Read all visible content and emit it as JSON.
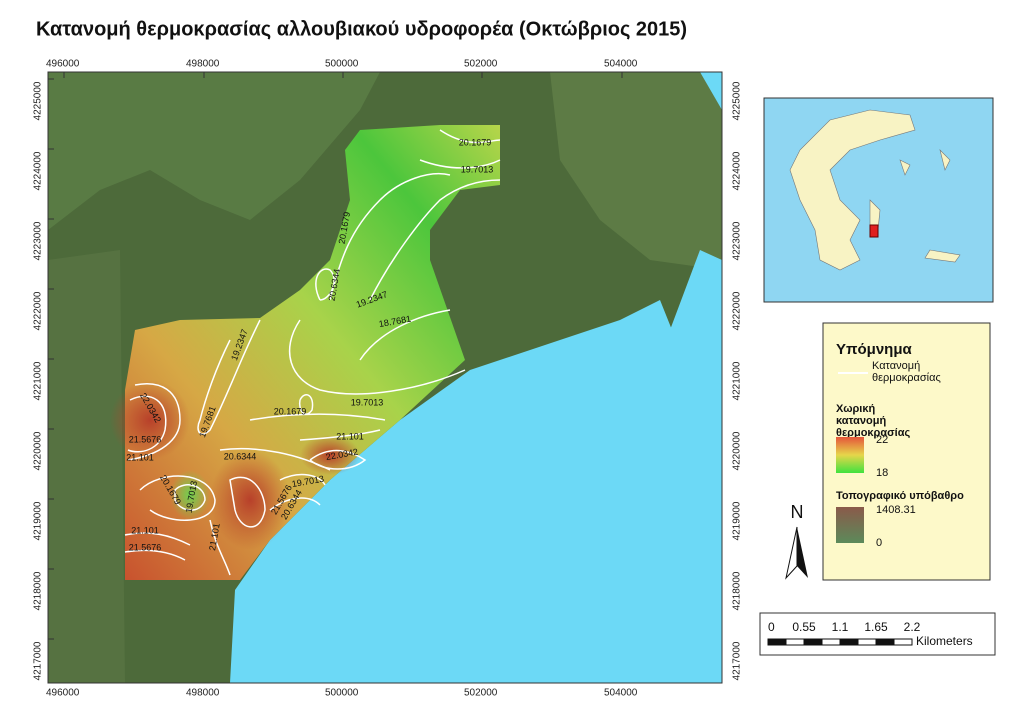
{
  "title": "Κατανομή θερμοκρασίας αλλουβιακού υδροφορέα (Οκτώβριος 2015)",
  "map": {
    "x_labels": [
      496000,
      498000,
      500000,
      502000,
      504000
    ],
    "y_labels": [
      4225000,
      4224000,
      4223000,
      4222000,
      4221000,
      4220000,
      4219000,
      4218000,
      4217000
    ],
    "contour_labels": [
      20.1679,
      19.7013,
      20.1679,
      20.6344,
      19.2347,
      18.7681,
      19.2347,
      22.0342,
      21.5676,
      21.101,
      19.7681,
      20.1679,
      19.7013,
      21.101,
      20.6344,
      22.0342,
      20.1679,
      19.7013,
      19.7013,
      21.5676,
      20.6344,
      21.101,
      21.101,
      21.5676
    ]
  },
  "legend": {
    "title": "Υπόμνημα",
    "contours": "Κατανομή θερμοκρασίας",
    "spatial": {
      "title": "Χωρική κατανομή θερμοκρασίας",
      "high": 22,
      "low": 18
    },
    "topo": {
      "title": "Τοπογραφικό υπόβαθρο",
      "high": 1408.31,
      "low": 0
    }
  },
  "north": "N",
  "scale_bar": {
    "ticks": [
      0,
      0.55,
      1.1,
      1.65,
      2.2
    ],
    "unit": "Kilometers"
  }
}
